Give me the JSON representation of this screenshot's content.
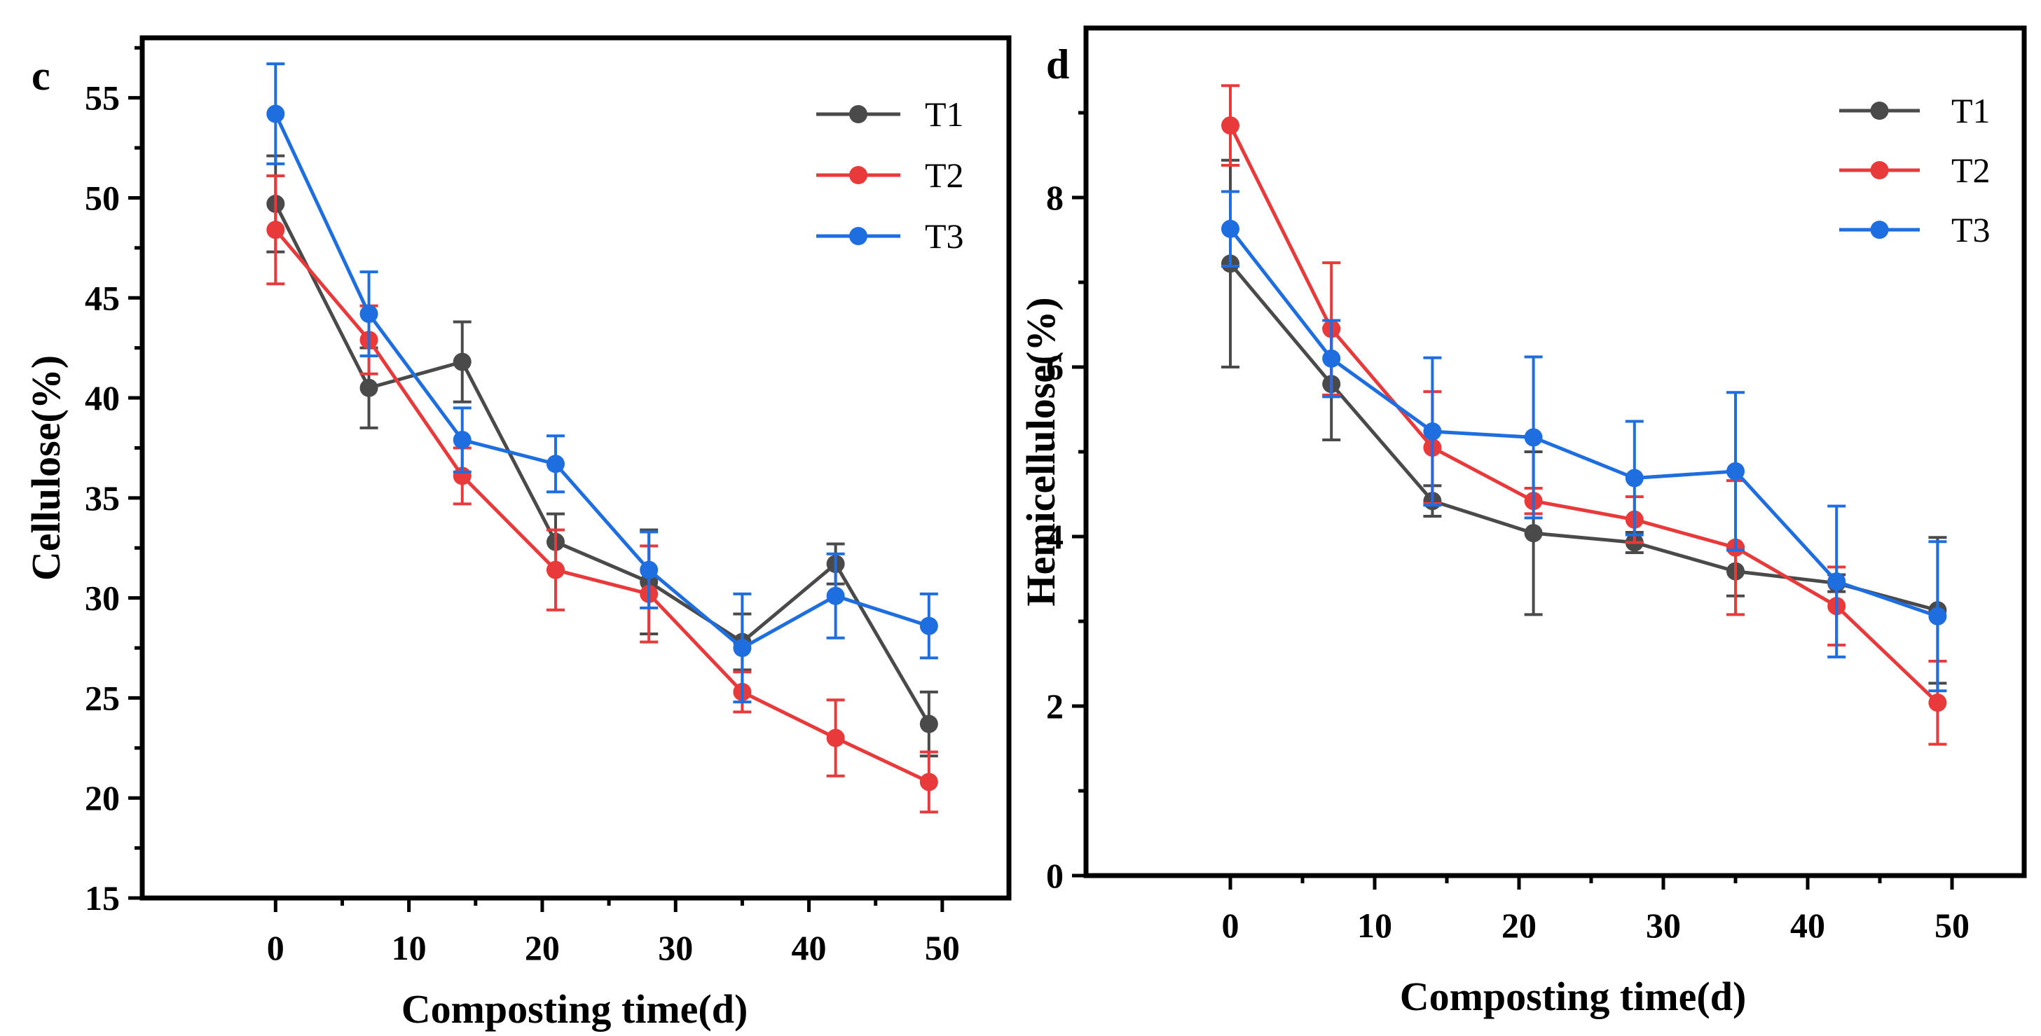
{
  "colors": {
    "T1": "#4a4a4a",
    "T2": "#e8393b",
    "T3": "#1f6ee0",
    "axis": "#000000"
  },
  "chart_data": [
    {
      "type": "line",
      "panel": "c",
      "xlabel": "Composting time(d)",
      "ylabel": "Cellulose(%)",
      "xlim": [
        -10,
        55
      ],
      "ylim": [
        15,
        58
      ],
      "xticks": [
        0,
        10,
        20,
        30,
        40,
        50
      ],
      "yticks": [
        15,
        20,
        25,
        30,
        35,
        40,
        45,
        50,
        55
      ],
      "legend": "top-right",
      "x": [
        0,
        7,
        14,
        21,
        28,
        35,
        42,
        49
      ],
      "series": [
        {
          "name": "T1",
          "values": [
            49.7,
            40.5,
            41.8,
            32.8,
            30.8,
            27.8,
            31.7,
            23.7
          ],
          "errors": [
            2.4,
            2.0,
            2.0,
            1.4,
            2.6,
            1.4,
            1.0,
            1.6
          ]
        },
        {
          "name": "T2",
          "values": [
            48.4,
            42.9,
            36.1,
            31.4,
            30.2,
            25.3,
            23.0,
            20.8
          ],
          "errors": [
            2.7,
            1.7,
            1.4,
            2.0,
            2.4,
            1.0,
            1.9,
            1.5
          ]
        },
        {
          "name": "T3",
          "values": [
            54.2,
            44.2,
            37.9,
            36.7,
            31.4,
            27.5,
            30.1,
            28.6
          ],
          "errors": [
            2.5,
            2.1,
            1.6,
            1.4,
            1.9,
            2.7,
            2.1,
            1.6
          ]
        }
      ]
    },
    {
      "type": "line",
      "panel": "d",
      "xlabel": "Composting time(d)",
      "ylabel": "Hemicellulose(%)",
      "xlim": [
        -10,
        55
      ],
      "ylim": [
        0,
        10
      ],
      "xticks": [
        0,
        10,
        20,
        30,
        40,
        50
      ],
      "yticks": [
        0,
        2,
        4,
        6,
        8
      ],
      "legend": "top-right",
      "x": [
        0,
        7,
        14,
        21,
        28,
        35,
        42,
        49
      ],
      "series": [
        {
          "name": "T1",
          "values": [
            7.22,
            5.8,
            4.42,
            4.04,
            3.93,
            3.59,
            3.45,
            3.13
          ],
          "errors": [
            1.22,
            0.66,
            0.18,
            0.96,
            0.12,
            0.29,
            0.1,
            0.86
          ]
        },
        {
          "name": "T2",
          "values": [
            8.85,
            6.45,
            5.05,
            4.42,
            4.2,
            3.87,
            3.18,
            2.04
          ],
          "errors": [
            0.47,
            0.78,
            0.66,
            0.15,
            0.27,
            0.79,
            0.46,
            0.49
          ]
        },
        {
          "name": "T3",
          "values": [
            7.63,
            6.1,
            5.24,
            5.17,
            4.69,
            4.77,
            3.47,
            3.06
          ],
          "errors": [
            0.44,
            0.45,
            0.87,
            0.95,
            0.67,
            0.93,
            0.89,
            0.88
          ]
        }
      ]
    }
  ]
}
